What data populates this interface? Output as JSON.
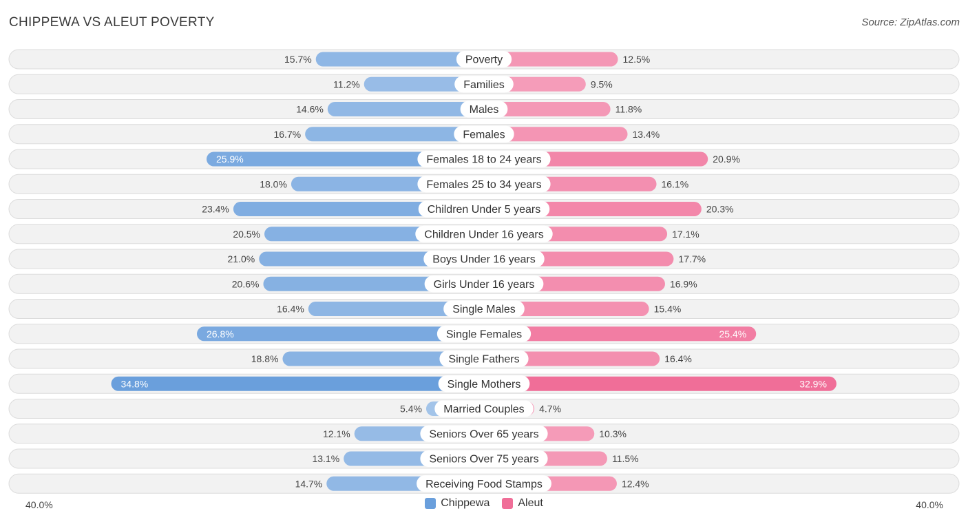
{
  "header": {
    "title": "CHIPPEWA VS ALEUT POVERTY",
    "source": "Source: ZipAtlas.com"
  },
  "colors": {
    "chippewa": "#6a9fdc",
    "aleut": "#f06e98",
    "row_bg": "#f2f2f2",
    "row_border": "#dcdcdc"
  },
  "axis": {
    "left_label": "40.0%",
    "right_label": "40.0%"
  },
  "legend": {
    "series1": "Chippewa",
    "series2": "Aleut"
  },
  "chart_data": {
    "type": "bar",
    "orientation": "horizontal-diverging",
    "title": "CHIPPEWA VS ALEUT POVERTY",
    "xlim": [
      0,
      40
    ],
    "categories": [
      "Poverty",
      "Families",
      "Males",
      "Females",
      "Females 18 to 24 years",
      "Females 25 to 34 years",
      "Children Under 5 years",
      "Children Under 16 years",
      "Boys Under 16 years",
      "Girls Under 16 years",
      "Single Males",
      "Single Females",
      "Single Fathers",
      "Single Mothers",
      "Married Couples",
      "Seniors Over 65 years",
      "Seniors Over 75 years",
      "Receiving Food Stamps"
    ],
    "series": [
      {
        "name": "Chippewa",
        "values": [
          15.7,
          11.2,
          14.6,
          16.7,
          25.9,
          18.0,
          23.4,
          20.5,
          21.0,
          20.6,
          16.4,
          26.8,
          18.8,
          34.8,
          5.4,
          12.1,
          13.1,
          14.7
        ],
        "labels": [
          "15.7%",
          "11.2%",
          "14.6%",
          "16.7%",
          "25.9%",
          "18.0%",
          "23.4%",
          "20.5%",
          "21.0%",
          "20.6%",
          "16.4%",
          "26.8%",
          "18.8%",
          "34.8%",
          "5.4%",
          "12.1%",
          "13.1%",
          "14.7%"
        ]
      },
      {
        "name": "Aleut",
        "values": [
          12.5,
          9.5,
          11.8,
          13.4,
          20.9,
          16.1,
          20.3,
          17.1,
          17.7,
          16.9,
          15.4,
          25.4,
          16.4,
          32.9,
          4.7,
          10.3,
          11.5,
          12.4
        ],
        "labels": [
          "12.5%",
          "9.5%",
          "11.8%",
          "13.4%",
          "20.9%",
          "16.1%",
          "20.3%",
          "17.1%",
          "17.7%",
          "16.9%",
          "15.4%",
          "25.4%",
          "16.4%",
          "32.9%",
          "4.7%",
          "10.3%",
          "11.5%",
          "12.4%"
        ]
      }
    ]
  }
}
